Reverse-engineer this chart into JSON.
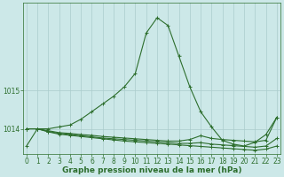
{
  "background_color": "#cce8e8",
  "grid_color": "#aacccc",
  "line_color": "#2d6e2d",
  "xlabel": "Graphe pression niveau de la mer (hPa)",
  "ylim": [
    1013.35,
    1017.3
  ],
  "yticks": [
    1014,
    1015
  ],
  "xlim": [
    -0.3,
    23.3
  ],
  "xticks": [
    0,
    1,
    2,
    3,
    4,
    5,
    6,
    7,
    8,
    9,
    10,
    11,
    12,
    13,
    14,
    15,
    16,
    17,
    18,
    19,
    20,
    21,
    22,
    23
  ],
  "series": [
    [
      1013.55,
      1014.0,
      1014.0,
      1014.05,
      1014.1,
      1014.25,
      1014.45,
      1014.65,
      1014.85,
      1015.1,
      1015.45,
      1016.5,
      1016.9,
      1016.7,
      1015.9,
      1015.1,
      1014.45,
      1014.05,
      1013.7,
      1013.6,
      1013.55,
      1013.65,
      1013.85,
      1014.3
    ],
    [
      1014.0,
      1014.0,
      1013.95,
      1013.9,
      1013.88,
      1013.85,
      1013.83,
      1013.8,
      1013.78,
      1013.76,
      1013.74,
      1013.72,
      1013.7,
      1013.68,
      1013.68,
      1013.72,
      1013.82,
      1013.75,
      1013.72,
      1013.7,
      1013.68,
      1013.66,
      1013.7,
      1014.3
    ],
    [
      1014.0,
      1014.0,
      1013.93,
      1013.88,
      1013.85,
      1013.82,
      1013.79,
      1013.76,
      1013.74,
      1013.72,
      1013.7,
      1013.68,
      1013.66,
      1013.64,
      1013.62,
      1013.62,
      1013.64,
      1013.6,
      1013.58,
      1013.56,
      1013.54,
      1013.52,
      1013.55,
      1013.75
    ],
    [
      1014.0,
      1014.0,
      1013.92,
      1013.86,
      1013.83,
      1013.8,
      1013.77,
      1013.74,
      1013.71,
      1013.68,
      1013.66,
      1013.64,
      1013.62,
      1013.6,
      1013.58,
      1013.56,
      1013.54,
      1013.52,
      1013.5,
      1013.48,
      1013.46,
      1013.44,
      1013.47,
      1013.55
    ]
  ],
  "marker": "+",
  "markersize": 3.5,
  "linewidth": 0.8,
  "tick_fontsize": 5.5,
  "xlabel_fontsize": 6.5,
  "tick_color": "#2d6e2d",
  "xlabel_color": "#2d6e2d"
}
